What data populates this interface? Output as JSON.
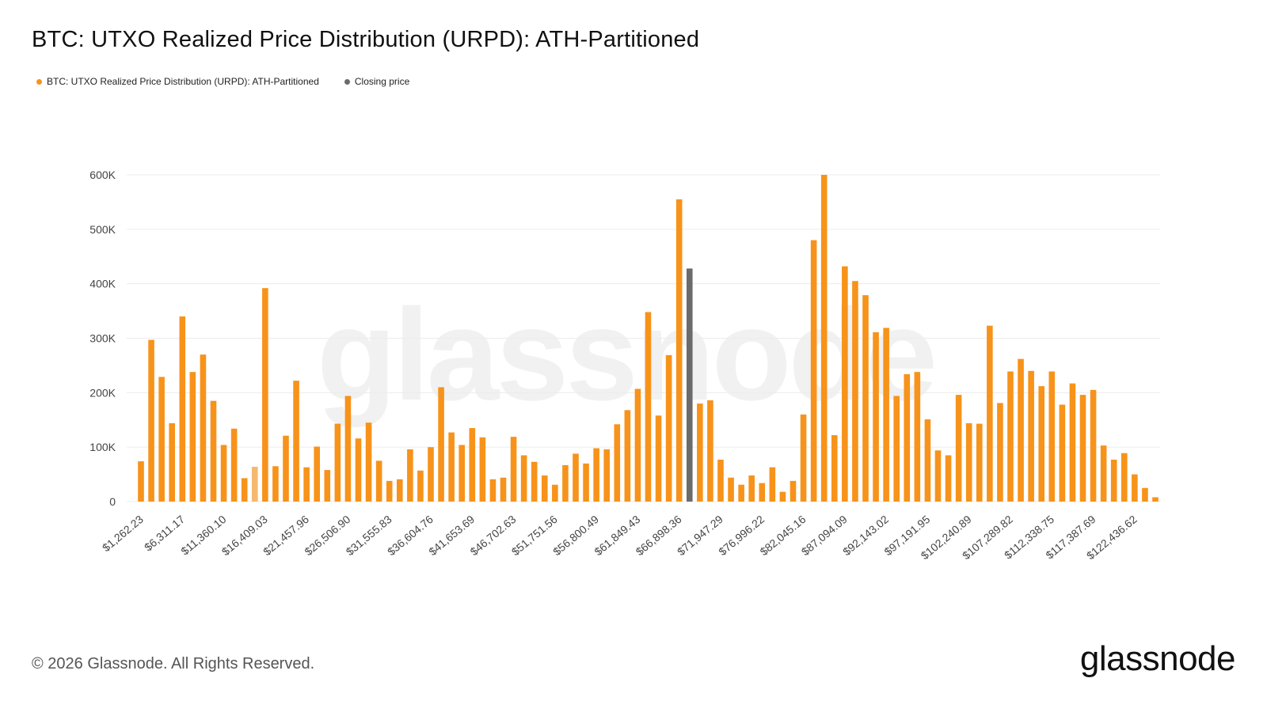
{
  "title": "BTC: UTXO Realized Price Distribution (URPD): ATH-Partitioned",
  "legend": [
    {
      "label": "BTC: UTXO Realized Price Distribution (URPD): ATH-Partitioned",
      "color": "#f7931a"
    },
    {
      "label": "Closing price",
      "color": "#6b6b6b"
    }
  ],
  "watermark": "glassnode",
  "footer": {
    "copyright": "© 2026 Glassnode. All Rights Reserved.",
    "logo": "glassnode"
  },
  "colors": {
    "bar": "#f7931a",
    "bar_light": "#f5b870",
    "closing": "#6b6b6b",
    "grid": "#ececec",
    "axis_text": "#444444"
  },
  "chart_data": {
    "type": "bar",
    "ylim": [
      0,
      600000
    ],
    "y_ticks": [
      {
        "value": 0,
        "label": "0"
      },
      {
        "value": 100000,
        "label": "100K"
      },
      {
        "value": 200000,
        "label": "200K"
      },
      {
        "value": 300000,
        "label": "300K"
      },
      {
        "value": 400000,
        "label": "400K"
      },
      {
        "value": 500000,
        "label": "500K"
      },
      {
        "value": 600000,
        "label": "600K"
      }
    ],
    "x_tick_labels": [
      {
        "index": 0,
        "label": "$1,262.23"
      },
      {
        "index": 4,
        "label": "$6,311.17"
      },
      {
        "index": 8,
        "label": "$11,360.10"
      },
      {
        "index": 12,
        "label": "$16,409.03"
      },
      {
        "index": 16,
        "label": "$21,457.96"
      },
      {
        "index": 20,
        "label": "$26,506.90"
      },
      {
        "index": 24,
        "label": "$31,555.83"
      },
      {
        "index": 28,
        "label": "$36,604.76"
      },
      {
        "index": 32,
        "label": "$41,653.69"
      },
      {
        "index": 36,
        "label": "$46,702.63"
      },
      {
        "index": 40,
        "label": "$51,751.56"
      },
      {
        "index": 44,
        "label": "$56,800.49"
      },
      {
        "index": 48,
        "label": "$61,849.43"
      },
      {
        "index": 52,
        "label": "$66,898.36"
      },
      {
        "index": 56,
        "label": "$71,947.29"
      },
      {
        "index": 60,
        "label": "$76,996.22"
      },
      {
        "index": 64,
        "label": "$82,045.16"
      },
      {
        "index": 68,
        "label": "$87,094.09"
      },
      {
        "index": 72,
        "label": "$92,143.02"
      },
      {
        "index": 76,
        "label": "$97,191.95"
      },
      {
        "index": 80,
        "label": "$102,240.89"
      },
      {
        "index": 84,
        "label": "$107,289.82"
      },
      {
        "index": 88,
        "label": "$112,338.75"
      },
      {
        "index": 92,
        "label": "$117,387.69"
      },
      {
        "index": 96,
        "label": "$122,436.62"
      }
    ],
    "closing_index": 53,
    "light_indices": [
      11
    ],
    "values": [
      74000,
      297000,
      229000,
      144000,
      340000,
      238000,
      270000,
      185000,
      104000,
      134000,
      43000,
      64000,
      392000,
      65000,
      121000,
      222000,
      63000,
      101000,
      58000,
      143000,
      194000,
      116000,
      145000,
      75000,
      38000,
      41000,
      96000,
      57000,
      100000,
      210000,
      127000,
      104000,
      135000,
      118000,
      41000,
      44000,
      119000,
      85000,
      73000,
      48000,
      31000,
      67000,
      88000,
      70000,
      98000,
      96000,
      142000,
      168000,
      207000,
      348000,
      158000,
      269000,
      555000,
      428000,
      180000,
      186000,
      77000,
      44000,
      31000,
      48000,
      34000,
      63000,
      18000,
      38000,
      160000,
      480000,
      600000,
      122000,
      432000,
      405000,
      379000,
      311000,
      319000,
      194000,
      234000,
      238000,
      151000,
      94000,
      85000,
      196000,
      144000,
      143000,
      323000,
      181000,
      239000,
      262000,
      240000,
      212000,
      239000,
      178000,
      217000,
      196000,
      205000,
      103000,
      77000,
      89000,
      50000,
      25000,
      8000
    ]
  }
}
